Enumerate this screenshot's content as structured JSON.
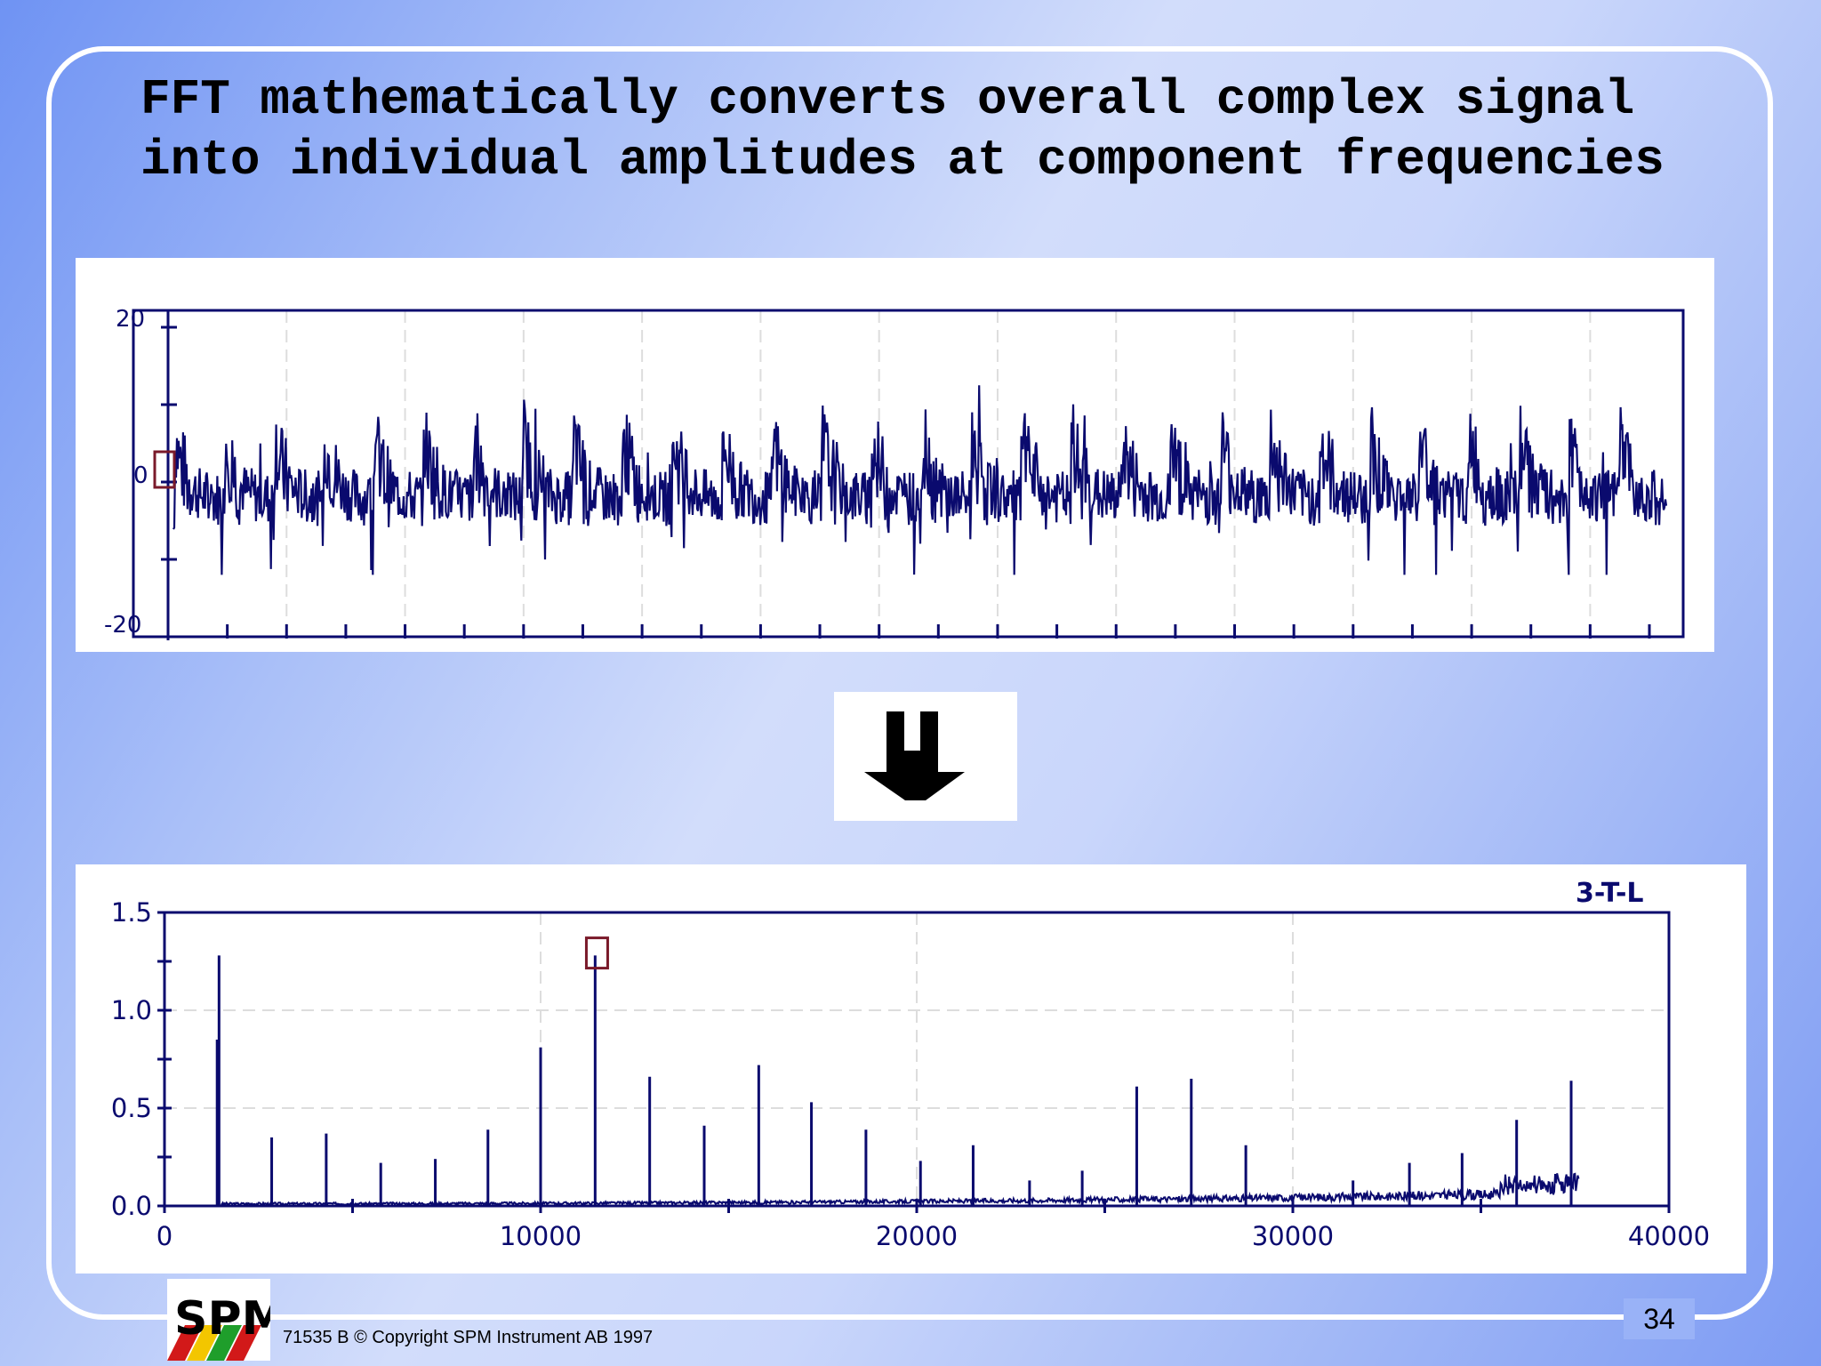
{
  "slide": {
    "title": "FFT mathematically converts overall complex signal into individual amplitudes at component frequencies",
    "page_number": "34",
    "footer": "71535 B  © Copyright SPM Instrument AB 1997",
    "logo_text": "SPM",
    "arrow_icon": "down-arrow-icon",
    "colors": {
      "plot_line": "#0a0a6e",
      "marker": "#7a1a2a",
      "frame": "#ffffff"
    }
  },
  "chart_data": [
    {
      "type": "line",
      "title": "",
      "xlabel": "",
      "ylabel": "",
      "ylim": [
        -20,
        20
      ],
      "y_ticks": [
        "20",
        "0",
        "-20"
      ],
      "x_tick_count": 26,
      "grid": true,
      "cycles": 30,
      "description_of_series": "periodic impulsive waveform, amplitude roughly between -12 and 12"
    },
    {
      "type": "bar",
      "title": "",
      "label": "3-T-L",
      "xlabel": "",
      "ylabel": "",
      "xlim": [
        0,
        40000
      ],
      "ylim": [
        0,
        1.5
      ],
      "x_ticks": [
        "0",
        "10000",
        "20000",
        "30000",
        "40000"
      ],
      "y_ticks": [
        "1.5",
        "1.0",
        "0.5",
        "0.0"
      ],
      "grid": true,
      "marker_at": 11500,
      "peaks": [
        {
          "x": 1400,
          "y": 0.85
        },
        {
          "x": 1450,
          "y": 1.28
        },
        {
          "x": 2850,
          "y": 0.35
        },
        {
          "x": 4300,
          "y": 0.37
        },
        {
          "x": 5750,
          "y": 0.22
        },
        {
          "x": 7200,
          "y": 0.24
        },
        {
          "x": 8600,
          "y": 0.39
        },
        {
          "x": 10000,
          "y": 0.81
        },
        {
          "x": 11450,
          "y": 1.28
        },
        {
          "x": 12900,
          "y": 0.66
        },
        {
          "x": 14350,
          "y": 0.41
        },
        {
          "x": 15800,
          "y": 0.72
        },
        {
          "x": 17200,
          "y": 0.53
        },
        {
          "x": 18650,
          "y": 0.39
        },
        {
          "x": 20100,
          "y": 0.23
        },
        {
          "x": 21500,
          "y": 0.31
        },
        {
          "x": 23000,
          "y": 0.13
        },
        {
          "x": 24400,
          "y": 0.18
        },
        {
          "x": 25850,
          "y": 0.61
        },
        {
          "x": 27300,
          "y": 0.65
        },
        {
          "x": 28750,
          "y": 0.31
        },
        {
          "x": 31600,
          "y": 0.13
        },
        {
          "x": 33100,
          "y": 0.22
        },
        {
          "x": 34500,
          "y": 0.27
        },
        {
          "x": 35950,
          "y": 0.44
        },
        {
          "x": 37400,
          "y": 0.64
        }
      ]
    }
  ]
}
